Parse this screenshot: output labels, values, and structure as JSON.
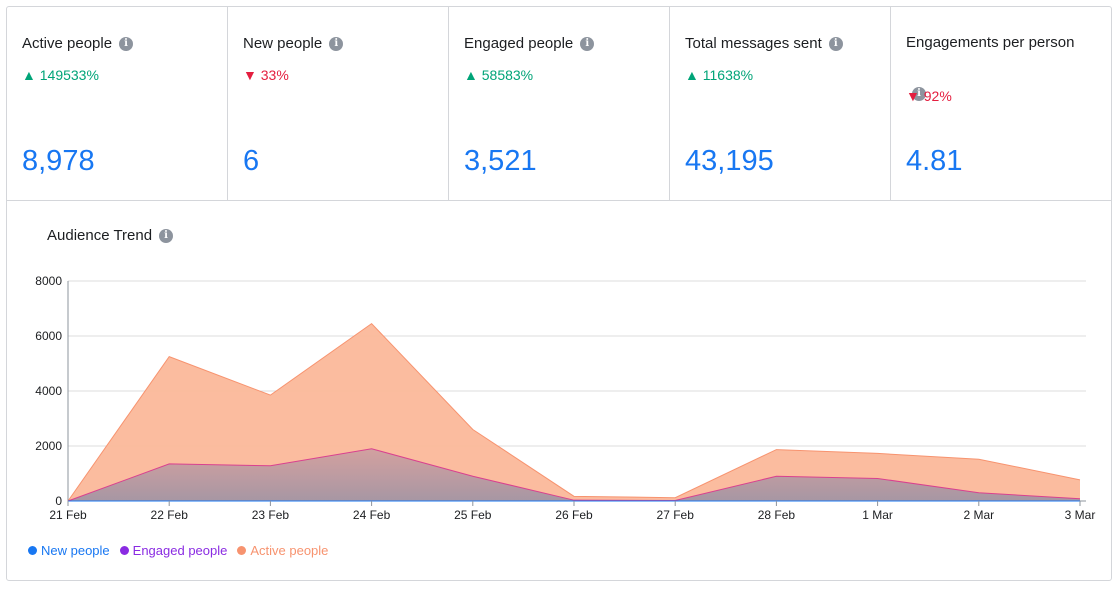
{
  "metrics": [
    {
      "title": "Active people",
      "change": "149533%",
      "direction": "up",
      "arrow": "▲",
      "value": "8,978"
    },
    {
      "title": "New people",
      "change": "33%",
      "direction": "down",
      "arrow": "▼",
      "value": "6"
    },
    {
      "title": "Engaged people",
      "change": "58583%",
      "direction": "up",
      "arrow": "▲",
      "value": "3,521"
    },
    {
      "title": "Total messages sent",
      "change": "11638%",
      "direction": "up",
      "arrow": "▲",
      "value": "43,195"
    },
    {
      "title": "Engagements per person",
      "change": "92%",
      "direction": "down",
      "arrow": "▼",
      "value": "4.81"
    }
  ],
  "info_icon_glyph": "i",
  "colors": {
    "up": "#00a478",
    "down": "#e41e3f",
    "value": "#1877f2",
    "new_people": "#1877f2",
    "engaged_people": "#8a2be2",
    "active_people": "#f7936f"
  },
  "chart_title": "Audience Trend",
  "chart_data": {
    "type": "area",
    "categories": [
      "21 Feb",
      "22 Feb",
      "23 Feb",
      "24 Feb",
      "25 Feb",
      "26 Feb",
      "27 Feb",
      "28 Feb",
      "1 Mar",
      "2 Mar",
      "3 Mar"
    ],
    "ylim": [
      0,
      8000
    ],
    "yticks": [
      0,
      2000,
      4000,
      6000,
      8000
    ],
    "grid": true,
    "legend_position": "bottom-left",
    "series": [
      {
        "name": "New people",
        "color": "#1877f2",
        "values": [
          0,
          1,
          1,
          1,
          1,
          0,
          0,
          1,
          1,
          0,
          0
        ]
      },
      {
        "name": "Engaged people",
        "color": "#8a2be2",
        "values": [
          0,
          1350,
          1280,
          1900,
          900,
          30,
          20,
          900,
          820,
          300,
          80
        ]
      },
      {
        "name": "Active people",
        "color": "#f7936f",
        "values": [
          0,
          5250,
          3850,
          6450,
          2600,
          170,
          120,
          1870,
          1730,
          1520,
          770
        ]
      }
    ]
  }
}
